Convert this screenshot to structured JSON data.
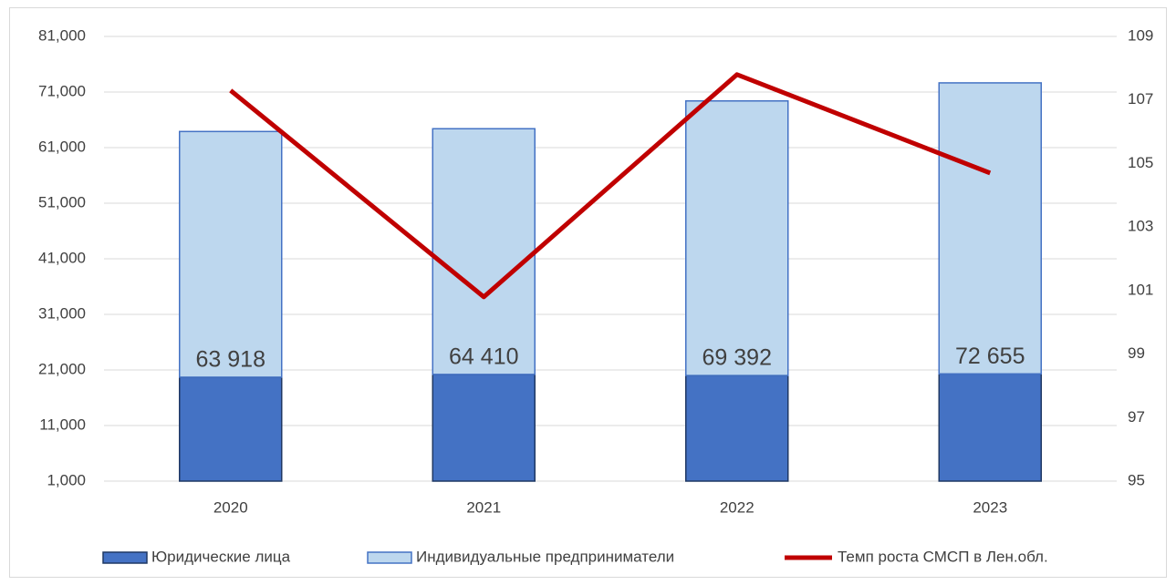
{
  "chart_data": {
    "type": "bar",
    "categories": [
      "2020",
      "2021",
      "2022",
      "2023"
    ],
    "series": [
      {
        "name": "Юридические лица",
        "color": "#4472c4",
        "values": [
          19700,
          20200,
          20000,
          20300
        ]
      },
      {
        "name": "Индивидуальные предприниматели",
        "color": "#bdd7ee",
        "values": [
          44200,
          44200,
          49400,
          52350
        ]
      },
      {
        "name": "Темп роста СМСП в Лен.обл.",
        "color": "#c00000",
        "type": "line",
        "axis": "y2",
        "values": [
          107.3,
          100.8,
          107.8,
          104.7
        ]
      }
    ],
    "annotations": [
      "63 918",
      "64 410",
      "69 392",
      "72 655"
    ],
    "stacked": true,
    "ylim": [
      1000,
      81000
    ],
    "yticks": [
      {
        "value": 1000,
        "label": "1,000"
      },
      {
        "value": 11000,
        "label": "11,000"
      },
      {
        "value": 21000,
        "label": "21,000"
      },
      {
        "value": 31000,
        "label": "31,000"
      },
      {
        "value": 41000,
        "label": "41,000"
      },
      {
        "value": 51000,
        "label": "51,000"
      },
      {
        "value": 61000,
        "label": "61,000"
      },
      {
        "value": 71000,
        "label": "71,000"
      },
      {
        "value": 81000,
        "label": "81,000"
      }
    ],
    "y2lim": [
      95,
      109
    ],
    "y2ticks": [
      95,
      97,
      99,
      101,
      103,
      105,
      107,
      109
    ],
    "grid": true,
    "legend": "bottom"
  }
}
